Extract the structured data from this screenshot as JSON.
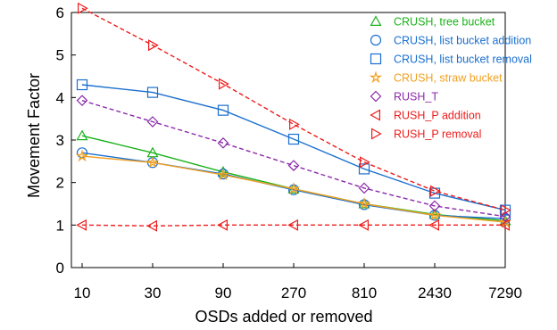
{
  "chart_data": {
    "type": "line",
    "xlabel": "OSDs added or removed",
    "ylabel": "Movement Factor",
    "categories": [
      "10",
      "30",
      "90",
      "270",
      "810",
      "2430",
      "7290"
    ],
    "ylim": [
      0,
      6
    ],
    "y_ticks": [
      "0",
      "1",
      "2",
      "3",
      "4",
      "5",
      "6"
    ],
    "legend_position": "top-right",
    "grid": false,
    "series": [
      {
        "name": "CRUSH, tree bucket",
        "color": "#1bb21b",
        "marker": "triangle-up",
        "dash": "solid",
        "values": [
          3.1,
          2.7,
          2.25,
          1.85,
          1.5,
          1.25,
          1.1
        ]
      },
      {
        "name": "CRUSH, list bucket addition",
        "color": "#1a6fcf",
        "marker": "circle",
        "dash": "solid",
        "values": [
          2.7,
          2.47,
          2.2,
          1.83,
          1.48,
          1.23,
          1.15
        ]
      },
      {
        "name": "CRUSH, list bucket removal",
        "color": "#1a6fcf",
        "marker": "square",
        "dash": "solid",
        "values": [
          4.3,
          4.12,
          3.7,
          3.02,
          2.32,
          1.75,
          1.35
        ]
      },
      {
        "name": "CRUSH, straw bucket",
        "color": "#f0a020",
        "marker": "star",
        "dash": "solid",
        "values": [
          2.62,
          2.47,
          2.18,
          1.85,
          1.5,
          1.23,
          1.07
        ]
      },
      {
        "name": "RUSH_T",
        "color": "#8a2aa8",
        "marker": "diamond",
        "dash": "dashed",
        "values": [
          3.93,
          3.43,
          2.93,
          2.4,
          1.87,
          1.45,
          1.2
        ]
      },
      {
        "name": "RUSH_P addition",
        "color": "#ee1c1c",
        "marker": "triangle-left",
        "dash": "dashed",
        "values": [
          1.0,
          0.98,
          1.0,
          1.0,
          1.0,
          1.0,
          1.0
        ]
      },
      {
        "name": "RUSH_P removal",
        "color": "#ee1c1c",
        "marker": "triangle-right",
        "dash": "dashed",
        "values": [
          6.1,
          5.23,
          4.32,
          3.37,
          2.48,
          1.8,
          1.35
        ]
      }
    ]
  }
}
